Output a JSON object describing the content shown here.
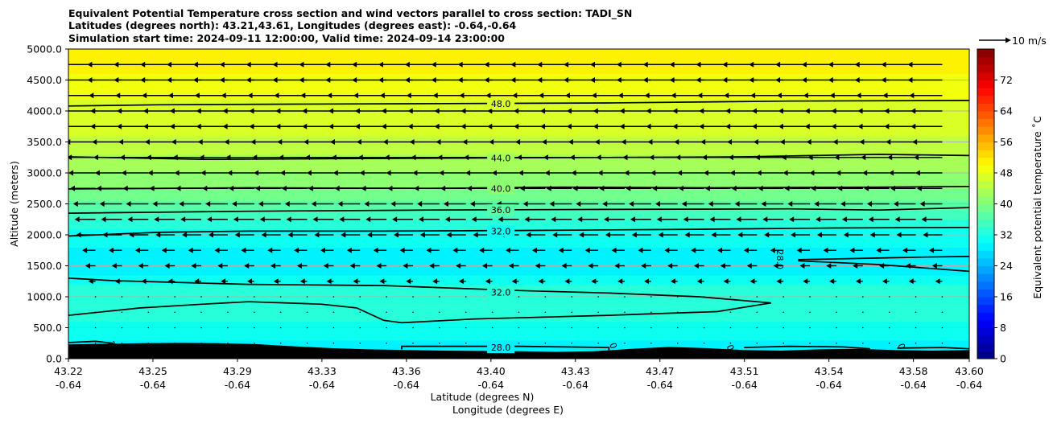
{
  "chart_data": {
    "type": "contour",
    "title_lines": [
      "Equivalent Potential Temperature cross section and wind vectors parallel to cross section: TADI_SN",
      "Latitudes (degrees north): 43.21,43.61, Longitudes (degrees east): -0.64,-0.64",
      "Simulation start time: 2024-09-11 12:00:00, Valid time: 2024-09-14 23:00:00"
    ],
    "ylabel": "Altitude (meters)",
    "xlabel_line1": "Latitude (degrees N)",
    "xlabel_line2": "Longitude (degrees E)",
    "xlim": [
      43.22,
      43.6
    ],
    "ylim": [
      0,
      5000
    ],
    "grid": "horizontal",
    "x_ticks": [
      {
        "lat": "43.22",
        "lon": "-0.64",
        "pos": 0.0
      },
      {
        "lat": "43.25",
        "lon": "-0.64",
        "pos": 0.0938
      },
      {
        "lat": "43.29",
        "lon": "-0.64",
        "pos": 0.1876
      },
      {
        "lat": "43.33",
        "lon": "-0.64",
        "pos": 0.2814
      },
      {
        "lat": "43.36",
        "lon": "-0.64",
        "pos": 0.3752
      },
      {
        "lat": "43.40",
        "lon": "-0.64",
        "pos": 0.469
      },
      {
        "lat": "43.43",
        "lon": "-0.64",
        "pos": 0.5628
      },
      {
        "lat": "43.47",
        "lon": "-0.64",
        "pos": 0.6566
      },
      {
        "lat": "43.51",
        "lon": "-0.64",
        "pos": 0.7504
      },
      {
        "lat": "43.54",
        "lon": "-0.64",
        "pos": 0.8442
      },
      {
        "lat": "43.58",
        "lon": "-0.64",
        "pos": 0.938
      },
      {
        "lat": "43.60",
        "lon": "-0.64",
        "pos": 1.0
      }
    ],
    "y_ticks": [
      "0.0",
      "500.0",
      "1000.0",
      "1500.0",
      "2000.0",
      "2500.0",
      "3000.0",
      "3500.0",
      "4000.0",
      "4500.0",
      "5000.0"
    ],
    "y_tick_values": [
      0,
      500,
      1000,
      1500,
      2000,
      2500,
      3000,
      3500,
      4000,
      4500,
      5000
    ],
    "colorbar": {
      "label": "Equivalent potential temperature $^\\circ$C",
      "label_text": "Equivalent potential temperature ˚C",
      "min": 0,
      "max": 80,
      "step": 2,
      "ticks": [
        "0",
        "8",
        "16",
        "24",
        "32",
        "40",
        "48",
        "56",
        "64",
        "72"
      ],
      "tick_values": [
        0,
        8,
        16,
        24,
        32,
        40,
        48,
        56,
        64,
        72
      ]
    },
    "quiver_key": {
      "label": "10 m/s",
      "speed": 10
    },
    "contour_labels": [
      {
        "text": "48.0",
        "pos": 0.48,
        "alt": 4120
      },
      {
        "text": "44.0",
        "pos": 0.48,
        "alt": 3240
      },
      {
        "text": "40.0",
        "pos": 0.48,
        "alt": 2750
      },
      {
        "text": "36.0",
        "pos": 0.48,
        "alt": 2400
      },
      {
        "text": "32.0",
        "pos": 0.48,
        "alt": 2060
      },
      {
        "text": "32.0",
        "pos": 0.48,
        "alt": 1070
      },
      {
        "text": "28.0",
        "pos": 0.48,
        "alt": 180
      },
      {
        "text": "28.0",
        "pos": 0.79,
        "alt": 1600,
        "rotate": 90
      },
      {
        "text": "2",
        "pos": 0.048,
        "alt": 240,
        "rotate": 70
      },
      {
        "text": "0",
        "pos": 0.605,
        "alt": 210,
        "rotate": 70
      },
      {
        "text": "0",
        "pos": 0.735,
        "alt": 180,
        "rotate": 70
      },
      {
        "text": "0",
        "pos": 0.925,
        "alt": 200,
        "rotate": 70
      }
    ],
    "contours": [
      {
        "level": 48,
        "points": [
          [
            0,
            4080
          ],
          [
            0.1,
            4100
          ],
          [
            0.25,
            4110
          ],
          [
            0.42,
            4120
          ],
          [
            0.6,
            4130
          ],
          [
            0.8,
            4160
          ],
          [
            1,
            4170
          ]
        ]
      },
      {
        "level": 44,
        "points": [
          [
            0,
            3260
          ],
          [
            0.15,
            3220
          ],
          [
            0.3,
            3230
          ],
          [
            0.45,
            3240
          ],
          [
            0.6,
            3250
          ],
          [
            0.75,
            3260
          ],
          [
            0.9,
            3300
          ],
          [
            1,
            3280
          ]
        ]
      },
      {
        "level": 40,
        "points": [
          [
            0,
            2740
          ],
          [
            0.2,
            2760
          ],
          [
            0.4,
            2750
          ],
          [
            0.55,
            2770
          ],
          [
            0.7,
            2760
          ],
          [
            0.9,
            2770
          ],
          [
            1,
            2780
          ]
        ]
      },
      {
        "level": 36,
        "points": [
          [
            0,
            2350
          ],
          [
            0.2,
            2380
          ],
          [
            0.4,
            2400
          ],
          [
            0.6,
            2410
          ],
          [
            0.8,
            2420
          ],
          [
            0.9,
            2400
          ],
          [
            1,
            2440
          ]
        ]
      },
      {
        "level": 32,
        "points": [
          [
            0,
            1980
          ],
          [
            0.1,
            2040
          ],
          [
            0.2,
            2060
          ],
          [
            0.35,
            2060
          ],
          [
            0.5,
            2070
          ],
          [
            0.7,
            2090
          ],
          [
            0.85,
            2110
          ],
          [
            1,
            2120
          ]
        ]
      },
      {
        "level": 32,
        "points": [
          [
            0,
            1300
          ],
          [
            0.05,
            1260
          ],
          [
            0.2,
            1200
          ],
          [
            0.35,
            1180
          ],
          [
            0.5,
            1100
          ],
          [
            0.6,
            1060
          ],
          [
            0.7,
            1000
          ],
          [
            0.78,
            900
          ],
          [
            0.72,
            760
          ],
          [
            0.6,
            700
          ],
          [
            0.45,
            640
          ],
          [
            0.37,
            580
          ],
          [
            0.35,
            620
          ],
          [
            0.32,
            820
          ],
          [
            0.28,
            880
          ],
          [
            0.2,
            920
          ],
          [
            0.15,
            880
          ],
          [
            0.08,
            820
          ],
          [
            0,
            700
          ]
        ]
      },
      {
        "level": 32,
        "points": [
          [
            0.81,
            1600
          ],
          [
            0.85,
            1610
          ],
          [
            0.95,
            1640
          ],
          [
            1,
            1650
          ]
        ]
      },
      {
        "level": 32,
        "points": [
          [
            0.81,
            1580
          ],
          [
            0.9,
            1520
          ],
          [
            1,
            1410
          ]
        ]
      },
      {
        "level": 28,
        "points": [
          [
            0,
            260
          ],
          [
            0.03,
            280
          ],
          [
            0.05,
            250
          ]
        ]
      },
      {
        "level": 28,
        "points": [
          [
            0.37,
            150
          ],
          [
            0.37,
            200
          ],
          [
            0.5,
            200
          ],
          [
            0.6,
            180
          ],
          [
            0.6,
            140
          ]
        ]
      },
      {
        "level": 28,
        "points": [
          [
            0.75,
            180
          ],
          [
            0.8,
            200
          ],
          [
            0.86,
            190
          ],
          [
            0.89,
            160
          ]
        ]
      },
      {
        "level": 28,
        "points": [
          [
            0.92,
            170
          ],
          [
            0.97,
            180
          ],
          [
            1,
            160
          ]
        ]
      }
    ],
    "theta_profile": {
      "alt": [
        0,
        300,
        600,
        900,
        1200,
        1500,
        1800,
        2100,
        2400,
        2750,
        3000,
        3300,
        3600,
        3900,
        4200,
        4500,
        4800,
        5000
      ],
      "theta": [
        29,
        30,
        32,
        33,
        32,
        28,
        30,
        32,
        36,
        40,
        42,
        44,
        46,
        47,
        48,
        49.5,
        51,
        52
      ]
    },
    "terrain": {
      "alt_top": [
        230,
        240,
        250,
        255,
        250,
        235,
        200,
        170,
        150,
        140,
        130,
        125,
        120,
        110,
        120,
        160,
        190,
        170,
        140,
        130,
        150,
        160,
        140,
        130,
        140
      ]
    },
    "wind": {
      "alt": [
        4750,
        4500,
        4250,
        4000,
        3750,
        3500,
        3250,
        3000,
        2750,
        2500,
        2250,
        2000,
        1750,
        1500,
        1250,
        1000,
        750,
        500,
        250
      ],
      "speed": [
        10,
        10,
        9.5,
        9,
        9,
        8.5,
        8,
        7.5,
        7,
        6,
        5.5,
        5,
        3,
        2,
        1,
        0.5,
        0.5,
        0.5,
        0.5
      ]
    }
  }
}
